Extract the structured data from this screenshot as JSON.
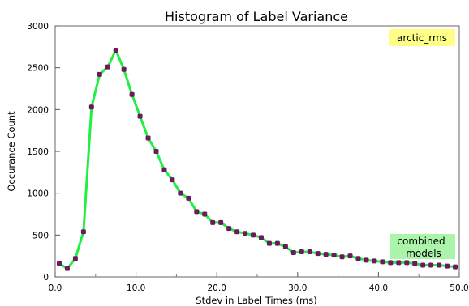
{
  "chart_data": {
    "type": "line",
    "title": "Histogram of Label Variance",
    "xlabel": "Stdev in Label Times (ms)",
    "ylabel": "Occurance Count",
    "xlim": [
      0,
      50
    ],
    "ylim": [
      0,
      3000
    ],
    "x_ticks": [
      0,
      10,
      20,
      30,
      40,
      50
    ],
    "x_tick_labels": [
      "0.0",
      "10.0",
      "20.0",
      "30.0",
      "40.0",
      "50.0"
    ],
    "y_ticks": [
      0,
      500,
      1000,
      1500,
      2000,
      2500,
      3000
    ],
    "y_tick_labels": [
      "0",
      "500",
      "1000",
      "1500",
      "2000",
      "2500",
      "3000"
    ],
    "grid": false,
    "series": [
      {
        "name": "combined models",
        "color": "#22ee44",
        "marker_color": "#6b1b5c",
        "points": [
          [
            0.5,
            160
          ],
          [
            1.5,
            100
          ],
          [
            2.5,
            220
          ],
          [
            3.5,
            540
          ],
          [
            4.5,
            2030
          ],
          [
            5.5,
            2420
          ],
          [
            6.5,
            2510
          ],
          [
            7.5,
            2710
          ],
          [
            8.5,
            2480
          ],
          [
            9.5,
            2180
          ],
          [
            10.5,
            1920
          ],
          [
            11.5,
            1660
          ],
          [
            12.5,
            1500
          ],
          [
            13.5,
            1280
          ],
          [
            14.5,
            1160
          ],
          [
            15.5,
            1000
          ],
          [
            16.5,
            940
          ],
          [
            17.5,
            780
          ],
          [
            18.5,
            750
          ],
          [
            19.5,
            650
          ],
          [
            20.5,
            650
          ],
          [
            21.5,
            580
          ],
          [
            22.5,
            540
          ],
          [
            23.5,
            520
          ],
          [
            24.5,
            500
          ],
          [
            25.5,
            470
          ],
          [
            26.5,
            400
          ],
          [
            27.5,
            400
          ],
          [
            28.5,
            360
          ],
          [
            29.5,
            290
          ],
          [
            30.5,
            300
          ],
          [
            31.5,
            300
          ],
          [
            32.5,
            280
          ],
          [
            33.5,
            270
          ],
          [
            34.5,
            260
          ],
          [
            35.5,
            240
          ],
          [
            36.5,
            250
          ],
          [
            37.5,
            220
          ],
          [
            38.5,
            200
          ],
          [
            39.5,
            190
          ],
          [
            40.5,
            180
          ],
          [
            41.5,
            170
          ],
          [
            42.5,
            170
          ],
          [
            43.5,
            170
          ],
          [
            44.5,
            160
          ],
          [
            45.5,
            140
          ],
          [
            46.5,
            140
          ],
          [
            47.5,
            140
          ],
          [
            48.5,
            130
          ],
          [
            49.5,
            120
          ]
        ]
      }
    ],
    "annotations": [
      {
        "text": "arctic_rms",
        "background": "#ffff88",
        "placement": "top-right"
      },
      {
        "text": [
          "combined",
          "models"
        ],
        "background": "#aaf5aa",
        "placement": "bottom-right"
      }
    ]
  }
}
